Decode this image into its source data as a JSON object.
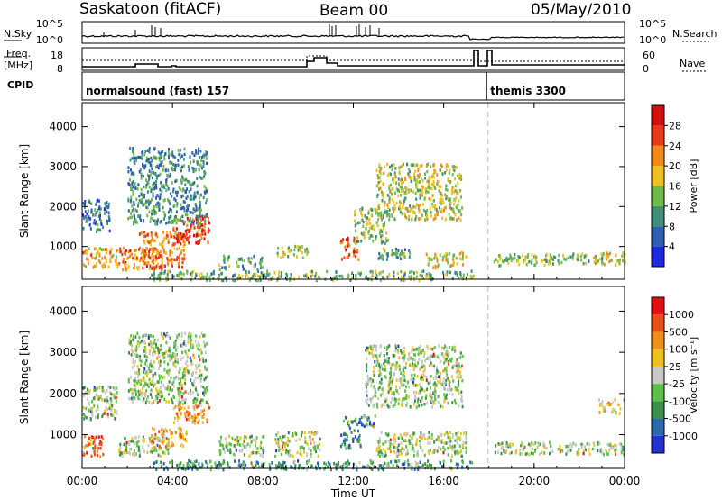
{
  "header": {
    "station": "Saskatoon (fitACF)",
    "beam": "Beam 00",
    "date": "05/May/2010"
  },
  "noise_panel": {
    "left_label": "N.Sky",
    "right_label": "N.Search",
    "left_ticks": [
      "10^5",
      "10^0"
    ],
    "right_ticks": [
      "10^5",
      "10^0"
    ]
  },
  "freq_panel": {
    "left_label_1": "Freq.",
    "left_label_2": "[MHz]",
    "right_label": "Nave",
    "left_ticks": [
      "18",
      "8"
    ],
    "right_ticks": [
      "60",
      "0"
    ]
  },
  "cpid": {
    "label": "CPID",
    "programs": [
      {
        "name": "normalsound (fast) 157",
        "start_hour": 0,
        "end_hour": 17.9
      },
      {
        "name": "themis 3300",
        "start_hour": 17.9,
        "end_hour": 24
      }
    ]
  },
  "chart_data": [
    {
      "type": "heatmap",
      "panel": "power",
      "xlabel": "",
      "ylabel": "Slant Range [km]",
      "xlim": [
        0,
        24
      ],
      "ylim": [
        180,
        4600
      ],
      "yticks": [
        1000,
        2000,
        3000,
        4000
      ],
      "colorbar": {
        "label": "Power [dB]",
        "ticks": [
          "4",
          "8",
          "12",
          "16",
          "20",
          "24",
          "28"
        ],
        "colors": [
          "#1f2ae0",
          "#2e5fb0",
          "#3f8f7a",
          "#6fb84c",
          "#f0c020",
          "#f08a18",
          "#e83a1a",
          "#d0100e"
        ]
      },
      "gap_hours": [
        17.3,
        18.0
      ],
      "regions": [
        {
          "t": [
            0.0,
            1.2
          ],
          "r": [
            1400,
            2200
          ],
          "level": 0.25
        },
        {
          "t": [
            0.0,
            1.6
          ],
          "r": [
            500,
            1000
          ],
          "level": 0.6
        },
        {
          "t": [
            1.6,
            3.5
          ],
          "r": [
            450,
            1000
          ],
          "level": 0.75
        },
        {
          "t": [
            2.5,
            4.5
          ],
          "r": [
            500,
            1400
          ],
          "level": 0.7
        },
        {
          "t": [
            4.0,
            5.6
          ],
          "r": [
            1100,
            1800
          ],
          "level": 0.85
        },
        {
          "t": [
            2.0,
            5.5
          ],
          "r": [
            1600,
            3500
          ],
          "level": 0.3
        },
        {
          "t": [
            6.0,
            8.0
          ],
          "r": [
            450,
            800
          ],
          "level": 0.35
        },
        {
          "t": [
            8.5,
            10.0
          ],
          "r": [
            750,
            1050
          ],
          "level": 0.45
        },
        {
          "t": [
            11.4,
            12.2
          ],
          "r": [
            700,
            1300
          ],
          "level": 0.85
        },
        {
          "t": [
            12.0,
            13.5
          ],
          "r": [
            1100,
            2000
          ],
          "level": 0.45
        },
        {
          "t": [
            13.0,
            16.8
          ],
          "r": [
            1700,
            3100
          ],
          "level": 0.5
        },
        {
          "t": [
            13.0,
            14.5
          ],
          "r": [
            700,
            1000
          ],
          "level": 0.35
        },
        {
          "t": [
            15.2,
            17.0
          ],
          "r": [
            500,
            900
          ],
          "level": 0.55
        },
        {
          "t": [
            3.0,
            17.3
          ],
          "r": [
            180,
            420
          ],
          "level": 0.4
        },
        {
          "t": [
            18.2,
            20.5
          ],
          "r": [
            550,
            850
          ],
          "level": 0.45
        },
        {
          "t": [
            20.5,
            23.0
          ],
          "r": [
            600,
            850
          ],
          "level": 0.4
        },
        {
          "t": [
            22.6,
            24.0
          ],
          "r": [
            550,
            900
          ],
          "level": 0.55
        }
      ]
    },
    {
      "type": "heatmap",
      "panel": "velocity",
      "xlabel": "Time UT",
      "ylabel": "Slant Range [km]",
      "xlim": [
        0,
        24
      ],
      "ylim": [
        180,
        4600
      ],
      "yticks": [
        1000,
        2000,
        3000,
        4000
      ],
      "xticks": [
        "00:00",
        "04:00",
        "08:00",
        "12:00",
        "16:00",
        "20:00",
        "00:00"
      ],
      "colorbar": {
        "label": "Velocity [m s⁻¹]",
        "ticks": [
          "1000",
          "500",
          "100",
          "25",
          "-25",
          "-100",
          "-500",
          "-1000"
        ],
        "colors": [
          "#2830d0",
          "#2a6aa8",
          "#3a8f4a",
          "#5cc048",
          "#c8c8c8",
          "#f0c020",
          "#f0901c",
          "#e8501a",
          "#e01010"
        ]
      },
      "gap_hours": [
        17.3,
        18.0
      ],
      "regions": [
        {
          "t": [
            0.0,
            0.9
          ],
          "r": [
            500,
            1000
          ],
          "level": 0.8
        },
        {
          "t": [
            0.0,
            1.5
          ],
          "r": [
            1400,
            2200
          ],
          "level": 0.45
        },
        {
          "t": [
            1.6,
            3.8
          ],
          "r": [
            500,
            1000
          ],
          "level": 0.45
        },
        {
          "t": [
            3.0,
            4.6
          ],
          "r": [
            700,
            1200
          ],
          "level": 0.68
        },
        {
          "t": [
            4.0,
            5.6
          ],
          "r": [
            1300,
            1800
          ],
          "level": 0.7
        },
        {
          "t": [
            2.0,
            5.5
          ],
          "r": [
            1800,
            3500
          ],
          "level": 0.45
        },
        {
          "t": [
            6.0,
            8.0
          ],
          "r": [
            500,
            1000
          ],
          "level": 0.42
        },
        {
          "t": [
            8.5,
            10.5
          ],
          "r": [
            500,
            1100
          ],
          "level": 0.46
        },
        {
          "t": [
            11.5,
            13.0
          ],
          "r": [
            1200,
            1500
          ],
          "level": 0.22
        },
        {
          "t": [
            11.4,
            12.3
          ],
          "r": [
            700,
            1200
          ],
          "level": 0.25
        },
        {
          "t": [
            12.5,
            16.8
          ],
          "r": [
            1700,
            3200
          ],
          "level": 0.45
        },
        {
          "t": [
            13.0,
            17.0
          ],
          "r": [
            500,
            1100
          ],
          "level": 0.48
        },
        {
          "t": [
            3.0,
            17.3
          ],
          "r": [
            180,
            400
          ],
          "level": 0.3
        },
        {
          "t": [
            18.2,
            24.0
          ],
          "r": [
            550,
            850
          ],
          "level": 0.47
        },
        {
          "t": [
            22.8,
            24.0
          ],
          "r": [
            1500,
            1900
          ],
          "level": 0.55
        }
      ]
    }
  ]
}
